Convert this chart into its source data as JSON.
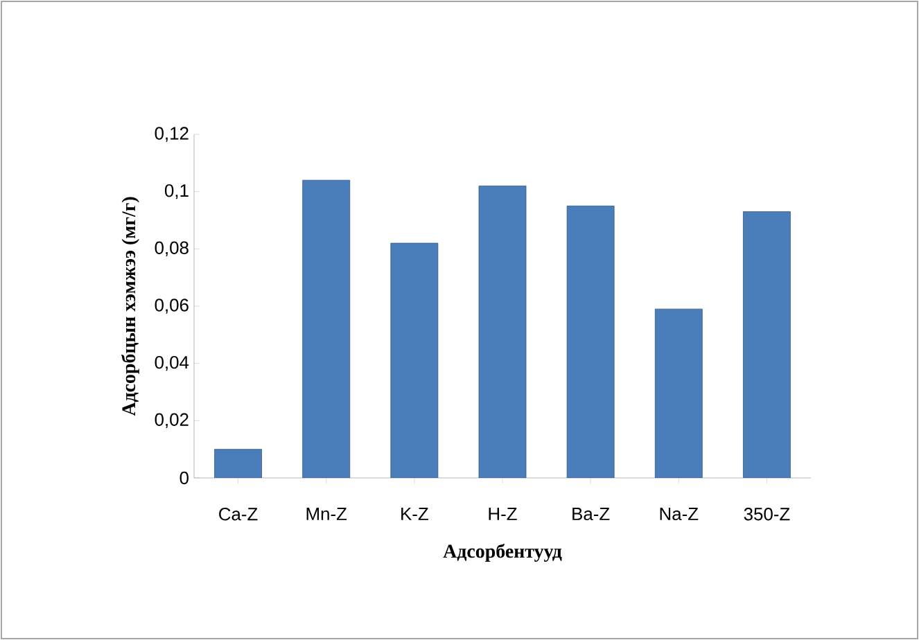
{
  "chart_data": {
    "type": "bar",
    "xlabel": "Адсорбентууд",
    "ylabel": "Адсорбцын хэмжээ (мг/г)",
    "categories": [
      "Ca-Z",
      "Mn-Z",
      "K-Z",
      "H-Z",
      "Ba-Z",
      "Na-Z",
      "350-Z"
    ],
    "values": [
      0.01,
      0.104,
      0.082,
      0.102,
      0.095,
      0.059,
      0.093
    ],
    "color": "#4a7ebb",
    "ylim": [
      0,
      0.12
    ],
    "yticks": [
      {
        "value": 0,
        "label": "0"
      },
      {
        "value": 0.02,
        "label": "0,02"
      },
      {
        "value": 0.04,
        "label": "0,04"
      },
      {
        "value": 0.06,
        "label": "0,06"
      },
      {
        "value": 0.08,
        "label": "0,08"
      },
      {
        "value": 0.1,
        "label": "0,1"
      },
      {
        "value": 0.12,
        "label": "0,12"
      }
    ],
    "grid": false
  }
}
